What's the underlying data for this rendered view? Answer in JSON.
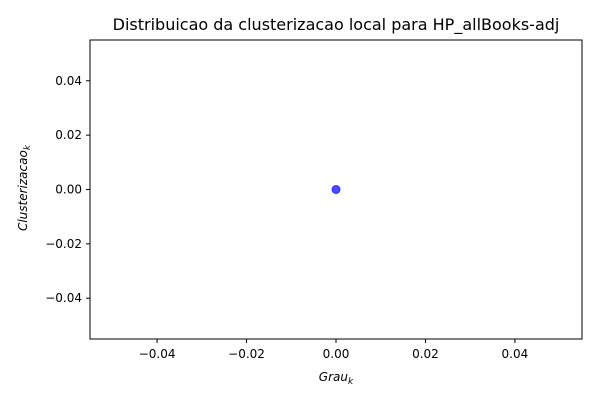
{
  "chart_data": {
    "type": "scatter",
    "title": "Distribuicao da clusterizacao local para HP_allBooks-adj",
    "xlabel": {
      "base": "Grau",
      "sub": "k"
    },
    "ylabel": {
      "base": "Clusterizacao",
      "sub": "k"
    },
    "xlim": [
      -0.055,
      0.055
    ],
    "ylim": [
      -0.055,
      0.055
    ],
    "xticks": [
      -0.04,
      -0.02,
      0.0,
      0.02,
      0.04
    ],
    "xtick_labels": [
      "−0.04",
      "−0.02",
      "0.00",
      "0.02",
      "0.04"
    ],
    "yticks": [
      -0.04,
      -0.02,
      0.0,
      0.02,
      0.04
    ],
    "ytick_labels": [
      "−0.04",
      "−0.02",
      "0.00",
      "0.02",
      "0.04"
    ],
    "points": [
      {
        "x": 0.0,
        "y": 0.0
      }
    ],
    "marker_color": "#0000ff",
    "marker_opacity": 0.7,
    "grid": false,
    "legend": "none"
  }
}
